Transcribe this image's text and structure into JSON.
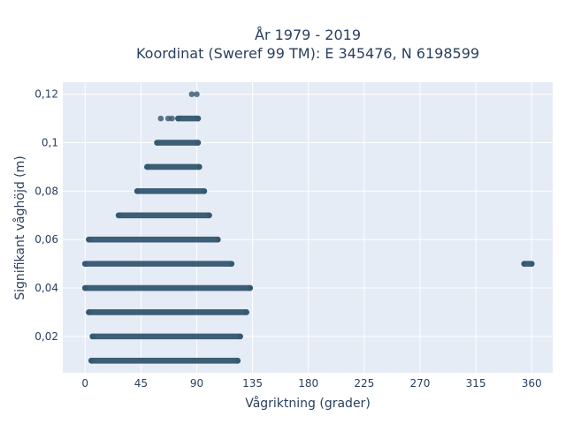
{
  "chart_data": {
    "type": "scatter",
    "title_line1": "År 1979 - 2019",
    "title_line2": "Koordinat (Sweref 99 TM): E 345476, N 6198599",
    "xlabel": "Vågriktning (grader)",
    "ylabel": "Signifikant våghöjd (m)",
    "xlim": [
      -18,
      377
    ],
    "ylim": [
      0.005,
      0.125
    ],
    "x_ticks": [
      0,
      45,
      90,
      135,
      180,
      225,
      270,
      315,
      360
    ],
    "y_ticks": [
      0.02,
      0.04,
      0.06,
      0.08,
      0.1,
      0.12
    ],
    "y_tick_labels": [
      "0,02",
      "0,04",
      "0,06",
      "0,08",
      "0,1",
      "0,12"
    ],
    "grid": true,
    "marker_color": "#34566f",
    "plot_background": "#e5ecf6",
    "bands": [
      {
        "y": 0.01,
        "x_min": 5,
        "x_max": 123
      },
      {
        "y": 0.02,
        "x_min": 6,
        "x_max": 125
      },
      {
        "y": 0.03,
        "x_min": 3,
        "x_max": 130
      },
      {
        "y": 0.04,
        "x_min": 0,
        "x_max": 133
      },
      {
        "y": 0.05,
        "x_min": 0,
        "x_max": 118
      },
      {
        "y": 0.05,
        "x_min": 354,
        "x_max": 360
      },
      {
        "y": 0.06,
        "x_min": 3,
        "x_max": 107
      },
      {
        "y": 0.07,
        "x_min": 27,
        "x_max": 100
      },
      {
        "y": 0.08,
        "x_min": 42,
        "x_max": 96
      },
      {
        "y": 0.09,
        "x_min": 50,
        "x_max": 92
      },
      {
        "y": 0.1,
        "x_min": 58,
        "x_max": 91
      },
      {
        "y": 0.11,
        "x_min": 75,
        "x_max": 91
      }
    ],
    "points": [
      {
        "x": 61,
        "y": 0.11
      },
      {
        "x": 67,
        "y": 0.11
      },
      {
        "x": 70,
        "y": 0.11
      },
      {
        "x": 86,
        "y": 0.12
      },
      {
        "x": 90,
        "y": 0.12
      }
    ]
  }
}
